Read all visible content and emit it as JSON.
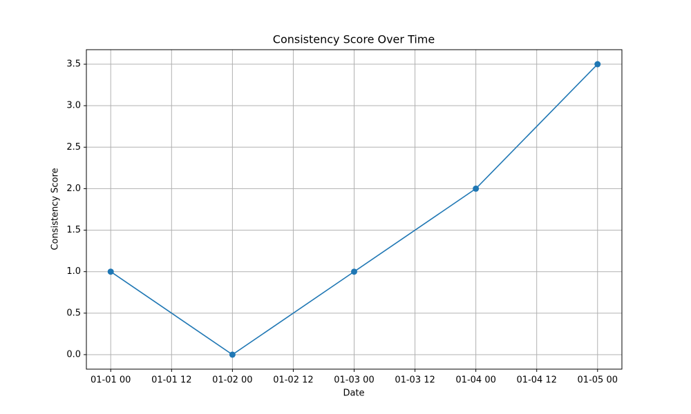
{
  "chart_data": {
    "type": "line",
    "title": "Consistency Score Over Time",
    "x_label": "Date",
    "y_label": "Consistency Score",
    "x": [
      "01-01 00",
      "01-02 00",
      "01-03 00",
      "01-04 00",
      "01-05 00"
    ],
    "values": [
      1.0,
      0.0,
      1.0,
      2.0,
      3.5
    ],
    "color": "#1f77b4",
    "markers": true,
    "xlim": [
      "12-31 19:12",
      "01-05 04:48"
    ],
    "xticks": [
      "01-01 00",
      "01-01 12",
      "01-02 00",
      "01-02 12",
      "01-03 00",
      "01-03 12",
      "01-04 00",
      "01-04 12",
      "01-05 00"
    ],
    "ylim": [
      -0.175,
      3.675
    ],
    "yticks": [
      {
        "value": 0,
        "label": "0.0"
      },
      {
        "value": 0.5,
        "label": "0.5"
      },
      {
        "value": 1,
        "label": "1.0"
      },
      {
        "value": 1.5,
        "label": "1.5"
      },
      {
        "value": 2,
        "label": "2.0"
      },
      {
        "value": 2.5,
        "label": "2.5"
      },
      {
        "value": 3,
        "label": "3.0"
      },
      {
        "value": 3.5,
        "label": "3.5"
      }
    ],
    "grid": true
  }
}
